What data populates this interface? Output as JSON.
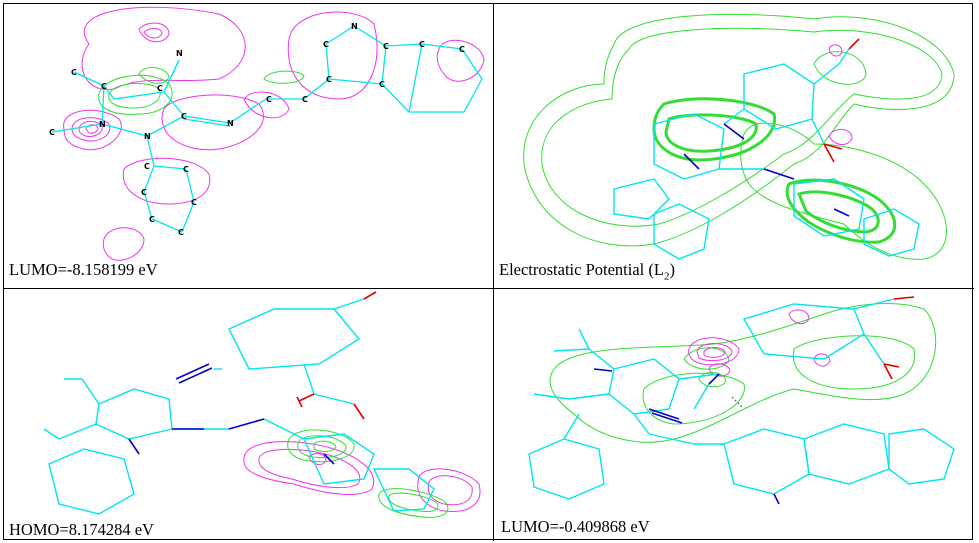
{
  "panels": [
    {
      "caption": "LUMO=-8.158199 eV"
    },
    {
      "caption_prefix": "Electrostatic Potential (L",
      "caption_sub": "2",
      "caption_suffix": ")"
    },
    {
      "caption": "HOMO=8.174284 eV"
    },
    {
      "caption": "LUMO=-0.409868 eV"
    }
  ],
  "atom_label": "C",
  "nitrogen_label": "N",
  "colors": {
    "bond": "#00e5ee",
    "nitrogen": "#0000cc",
    "oxygen": "#e00000",
    "positive": "#ee33ee",
    "negative": "#33dd33",
    "border": "#000000"
  }
}
